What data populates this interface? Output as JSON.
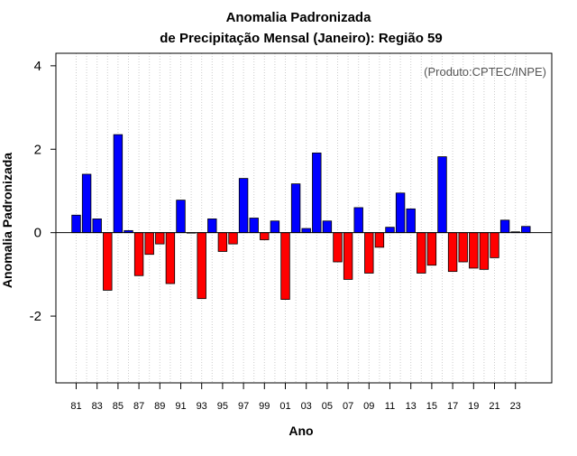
{
  "chart_data": {
    "type": "bar",
    "title": "Anomalia Padronizada",
    "subtitle": "de Precipitação Mensal (Janeiro): Região 59",
    "xlabel": "Ano",
    "ylabel": "Anomalia Padronizada",
    "annotation": "(Produto:CPTEC/INPE)",
    "ylim": [
      -3.6,
      4.3
    ],
    "yticks": [
      -2,
      0,
      2,
      4
    ],
    "yticklabels": [
      "-2",
      "0",
      "2",
      "4"
    ],
    "grid": "vertical dotted",
    "categories": [
      "81",
      "82",
      "83",
      "84",
      "85",
      "86",
      "87",
      "88",
      "89",
      "90",
      "91",
      "92",
      "93",
      "94",
      "95",
      "96",
      "97",
      "98",
      "99",
      "00",
      "01",
      "02",
      "03",
      "04",
      "05",
      "06",
      "07",
      "08",
      "09",
      "10",
      "11",
      "12",
      "13",
      "14",
      "15",
      "16",
      "17",
      "18",
      "19",
      "20",
      "21",
      "22",
      "23",
      "24"
    ],
    "xticklabels": [
      "81",
      "83",
      "85",
      "87",
      "89",
      "91",
      "93",
      "95",
      "97",
      "99",
      "01",
      "03",
      "05",
      "07",
      "09",
      "11",
      "13",
      "15",
      "17",
      "19",
      "21",
      "23"
    ],
    "values": [
      0.42,
      1.4,
      0.33,
      -1.38,
      2.35,
      0.05,
      -1.03,
      -0.52,
      -0.27,
      -1.22,
      0.78,
      0.0,
      -1.58,
      0.33,
      -0.45,
      -0.27,
      1.3,
      0.35,
      -0.17,
      0.28,
      -1.6,
      1.17,
      0.1,
      1.91,
      0.28,
      -0.7,
      -1.12,
      0.6,
      -0.97,
      -0.35,
      0.13,
      0.95,
      0.57,
      -0.97,
      -0.78,
      1.82,
      -0.93,
      -0.7,
      -0.85,
      -0.88,
      -0.6,
      0.3,
      0.02,
      0.15
    ],
    "colors": {
      "positive": "#0000ff",
      "negative": "#ff0000",
      "border": "#000000",
      "grid": "#cccccc"
    }
  }
}
